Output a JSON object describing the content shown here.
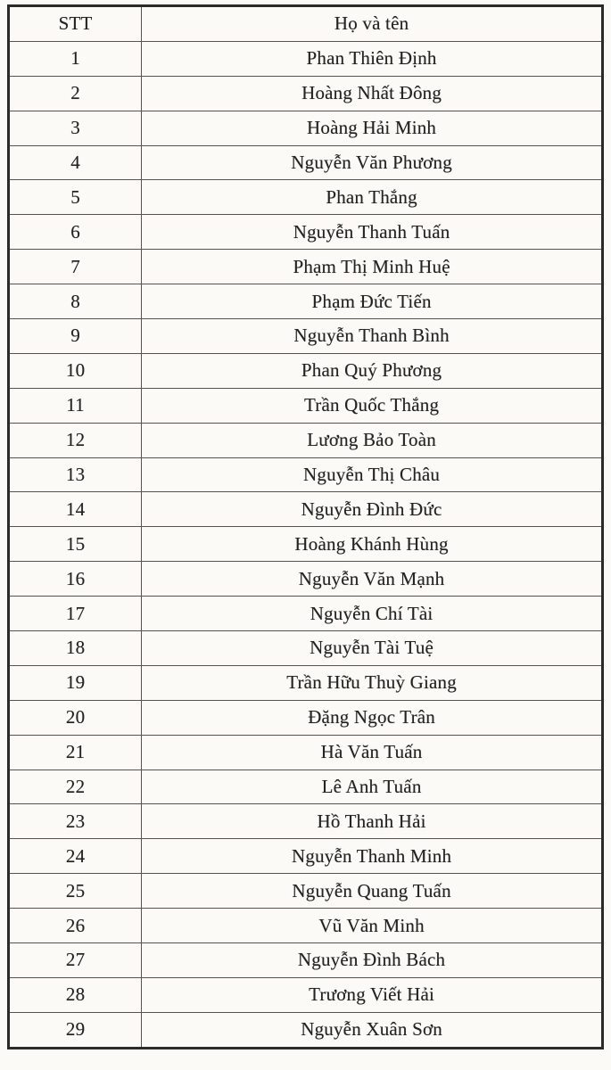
{
  "colors": {
    "background": "#fbfaf6",
    "inner_border": "#555250",
    "outer_border": "#2c2a28",
    "text": "#242322"
  },
  "table": {
    "columns": {
      "stt": "STT",
      "name": "Họ và tên"
    },
    "rows": [
      {
        "stt": "1",
        "name": "Phan Thiên Định"
      },
      {
        "stt": "2",
        "name": "Hoàng Nhất Đông"
      },
      {
        "stt": "3",
        "name": "Hoàng Hải Minh"
      },
      {
        "stt": "4",
        "name": "Nguyễn Văn Phương"
      },
      {
        "stt": "5",
        "name": "Phan Thắng"
      },
      {
        "stt": "6",
        "name": "Nguyễn Thanh Tuấn"
      },
      {
        "stt": "7",
        "name": "Phạm Thị Minh Huệ"
      },
      {
        "stt": "8",
        "name": "Phạm Đức Tiến"
      },
      {
        "stt": "9",
        "name": "Nguyễn Thanh Bình"
      },
      {
        "stt": "10",
        "name": "Phan Quý Phương"
      },
      {
        "stt": "11",
        "name": "Trần Quốc Thắng"
      },
      {
        "stt": "12",
        "name": "Lương Bảo Toàn"
      },
      {
        "stt": "13",
        "name": "Nguyễn Thị Châu"
      },
      {
        "stt": "14",
        "name": "Nguyễn Đình Đức"
      },
      {
        "stt": "15",
        "name": "Hoàng Khánh Hùng"
      },
      {
        "stt": "16",
        "name": "Nguyễn Văn Mạnh"
      },
      {
        "stt": "17",
        "name": "Nguyễn Chí Tài"
      },
      {
        "stt": "18",
        "name": "Nguyễn Tài Tuệ"
      },
      {
        "stt": "19",
        "name": "Trần Hữu Thuỳ Giang"
      },
      {
        "stt": "20",
        "name": "Đặng Ngọc Trân"
      },
      {
        "stt": "21",
        "name": "Hà Văn Tuấn"
      },
      {
        "stt": "22",
        "name": "Lê Anh Tuấn"
      },
      {
        "stt": "23",
        "name": "Hồ Thanh Hải"
      },
      {
        "stt": "24",
        "name": "Nguyễn Thanh Minh"
      },
      {
        "stt": "25",
        "name": "Nguyễn Quang Tuấn"
      },
      {
        "stt": "26",
        "name": "Vũ Văn Minh"
      },
      {
        "stt": "27",
        "name": "Nguyễn Đình Bách"
      },
      {
        "stt": "28",
        "name": "Trương Viết Hải"
      },
      {
        "stt": "29",
        "name": "Nguyễn Xuân Sơn"
      }
    ]
  }
}
